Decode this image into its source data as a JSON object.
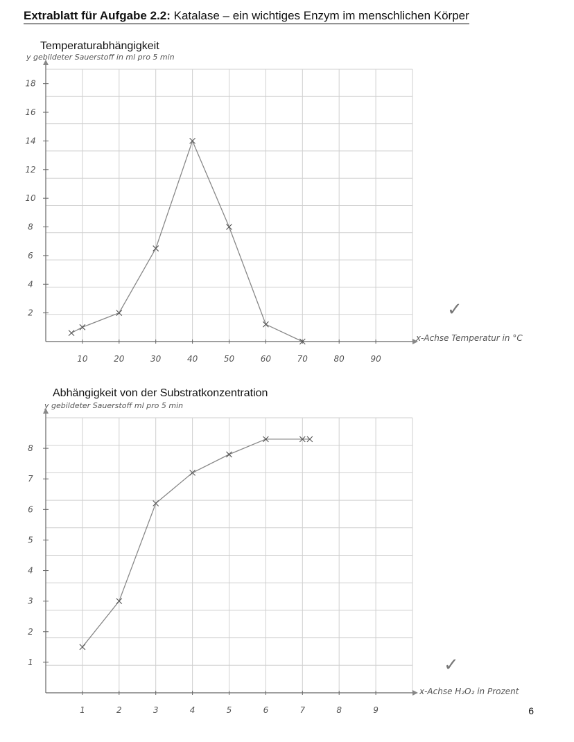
{
  "header": {
    "bold": "Extrablatt für Aufgabe 2.2:",
    "rest": "Katalase – ein wichtiges Enzym im menschlichen Körper"
  },
  "page_number": "6",
  "chart_data": [
    {
      "type": "line",
      "title": "Temperaturabhängigkeit",
      "ylabel": "y gebildeter Sauerstoff in ml pro 5 min",
      "xlabel": "x-Achse Temperatur in °C",
      "x_ticks": [
        "10",
        "20",
        "30",
        "40",
        "50",
        "60",
        "70",
        "80",
        "90"
      ],
      "y_ticks": [
        "2",
        "4",
        "6",
        "8",
        "10",
        "12",
        "14",
        "16",
        "18"
      ],
      "xlim": [
        0,
        100
      ],
      "ylim": [
        0,
        19
      ],
      "grid": true,
      "x": [
        7,
        10,
        20,
        30,
        40,
        50,
        60,
        70
      ],
      "y": [
        0.6,
        1,
        2,
        6.5,
        14,
        8,
        1.2,
        0
      ],
      "check_mark": "✓"
    },
    {
      "type": "line",
      "title": "Abhängigkeit von der Substratkonzentration",
      "ylabel": "y gebildeter Sauerstoff ml pro 5 min",
      "xlabel": "x-Achse H₂O₂ in Prozent",
      "x_ticks": [
        "1",
        "2",
        "3",
        "4",
        "5",
        "6",
        "7",
        "8",
        "9"
      ],
      "y_ticks": [
        "1",
        "2",
        "3",
        "4",
        "5",
        "6",
        "7",
        "8"
      ],
      "xlim": [
        0,
        10
      ],
      "ylim": [
        0,
        9
      ],
      "grid": true,
      "x": [
        1,
        2,
        3,
        4,
        5,
        6,
        7,
        7.2
      ],
      "y": [
        1.5,
        3,
        6.2,
        7.2,
        7.8,
        8.3,
        8.3,
        8.3
      ],
      "check_mark": "✓"
    }
  ]
}
